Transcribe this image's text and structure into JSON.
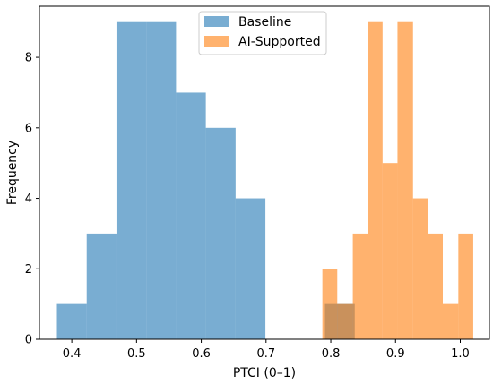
{
  "chart_data": {
    "type": "histogram",
    "xlabel": "PTCI (0–1)",
    "ylabel": "Frequency",
    "xlim": [
      0.35,
      1.045
    ],
    "ylim": [
      0,
      9.45
    ],
    "xticks": [
      0.4,
      0.5,
      0.6,
      0.7,
      0.8,
      0.9,
      1.0
    ],
    "xtick_labels": [
      "0.4",
      "0.5",
      "0.6",
      "0.7",
      "0.8",
      "0.9",
      "1.0"
    ],
    "yticks": [
      0,
      2,
      4,
      6,
      8
    ],
    "ytick_labels": [
      "0",
      "2",
      "4",
      "6",
      "8"
    ],
    "grid": false,
    "legend_position": "top-center",
    "series": [
      {
        "name": "Baseline",
        "color": "#1f77b4",
        "alpha": 0.6,
        "bins": [
          {
            "x0": 0.377,
            "x1": 0.423,
            "count": 1
          },
          {
            "x0": 0.423,
            "x1": 0.469,
            "count": 3
          },
          {
            "x0": 0.469,
            "x1": 0.515,
            "count": 9
          },
          {
            "x0": 0.515,
            "x1": 0.561,
            "count": 9
          },
          {
            "x0": 0.561,
            "x1": 0.607,
            "count": 7
          },
          {
            "x0": 0.607,
            "x1": 0.653,
            "count": 6
          },
          {
            "x0": 0.653,
            "x1": 0.699,
            "count": 4
          },
          {
            "x0": 0.791,
            "x1": 0.837,
            "count": 1
          }
        ]
      },
      {
        "name": "AI-Supported",
        "color": "#ff7f0e",
        "alpha": 0.6,
        "bins": [
          {
            "x0": 0.787,
            "x1": 0.81,
            "count": 2
          },
          {
            "x0": 0.81,
            "x1": 0.834,
            "count": 1
          },
          {
            "x0": 0.834,
            "x1": 0.857,
            "count": 3
          },
          {
            "x0": 0.857,
            "x1": 0.88,
            "count": 9
          },
          {
            "x0": 0.88,
            "x1": 0.903,
            "count": 5
          },
          {
            "x0": 0.903,
            "x1": 0.927,
            "count": 9
          },
          {
            "x0": 0.927,
            "x1": 0.95,
            "count": 4
          },
          {
            "x0": 0.95,
            "x1": 0.973,
            "count": 3
          },
          {
            "x0": 0.973,
            "x1": 0.997,
            "count": 1
          },
          {
            "x0": 0.997,
            "x1": 1.02,
            "count": 3
          }
        ]
      }
    ]
  }
}
